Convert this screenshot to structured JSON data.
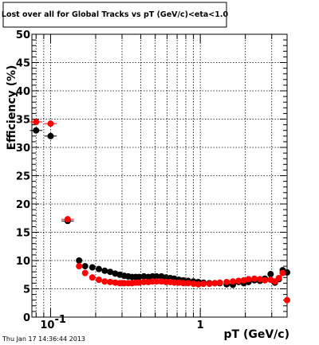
{
  "chart_data": {
    "type": "scatter",
    "title": "Lost over all for Global Tracks vs pT (GeV/c)<eta<1.0",
    "xlabel": "pT (GeV/c)",
    "ylabel": "Efficiency (%)",
    "x_scale": "log",
    "xlim": [
      0.075,
      3.8
    ],
    "ylim": [
      0,
      50
    ],
    "grid": true,
    "y_ticks": [
      0,
      5,
      10,
      15,
      20,
      25,
      30,
      35,
      40,
      45,
      50
    ],
    "y_tick_labels": [
      "0",
      "5",
      "10",
      "15",
      "20",
      "25",
      "30",
      "35",
      "40",
      "45",
      "50"
    ],
    "x_tick_labels": [
      {
        "value": 0.1,
        "base": "10",
        "exp": "-1"
      },
      {
        "value": 1,
        "base": "1",
        "exp": ""
      }
    ],
    "series": [
      {
        "color": "#000000",
        "points": [
          {
            "x": 0.08,
            "y": 33.0
          },
          {
            "x": 0.1,
            "y": 32.0
          },
          {
            "x": 0.13,
            "y": 17.0
          },
          {
            "x": 0.155,
            "y": 10.0
          },
          {
            "x": 0.17,
            "y": 9.0
          },
          {
            "x": 0.19,
            "y": 8.8
          },
          {
            "x": 0.21,
            "y": 8.5
          },
          {
            "x": 0.23,
            "y": 8.2
          },
          {
            "x": 0.25,
            "y": 8.0
          },
          {
            "x": 0.27,
            "y": 7.7
          },
          {
            "x": 0.29,
            "y": 7.5
          },
          {
            "x": 0.31,
            "y": 7.3
          },
          {
            "x": 0.33,
            "y": 7.2
          },
          {
            "x": 0.35,
            "y": 7.1
          },
          {
            "x": 0.37,
            "y": 7.1
          },
          {
            "x": 0.39,
            "y": 7.1
          },
          {
            "x": 0.42,
            "y": 7.2
          },
          {
            "x": 0.45,
            "y": 7.1
          },
          {
            "x": 0.48,
            "y": 7.2
          },
          {
            "x": 0.51,
            "y": 7.2
          },
          {
            "x": 0.55,
            "y": 7.2
          },
          {
            "x": 0.59,
            "y": 7.0
          },
          {
            "x": 0.63,
            "y": 6.9
          },
          {
            "x": 0.67,
            "y": 6.8
          },
          {
            "x": 0.72,
            "y": 6.6
          },
          {
            "x": 0.77,
            "y": 6.5
          },
          {
            "x": 0.83,
            "y": 6.4
          },
          {
            "x": 0.9,
            "y": 6.3
          },
          {
            "x": 0.97,
            "y": 6.2
          },
          {
            "x": 1.05,
            "y": 6.1
          },
          {
            "x": 1.15,
            "y": 6.0
          },
          {
            "x": 1.25,
            "y": 6.0
          },
          {
            "x": 1.35,
            "y": 6.0
          },
          {
            "x": 1.5,
            "y": 5.8
          },
          {
            "x": 1.65,
            "y": 5.7
          },
          {
            "x": 1.8,
            "y": 6.2
          },
          {
            "x": 1.95,
            "y": 6.0
          },
          {
            "x": 2.1,
            "y": 6.2
          },
          {
            "x": 2.3,
            "y": 6.5
          },
          {
            "x": 2.5,
            "y": 6.4
          },
          {
            "x": 2.7,
            "y": 6.8
          },
          {
            "x": 2.95,
            "y": 7.6
          },
          {
            "x": 3.15,
            "y": 6.1
          },
          {
            "x": 3.35,
            "y": 6.7
          },
          {
            "x": 3.55,
            "y": 8.3
          },
          {
            "x": 3.8,
            "y": 7.9
          }
        ]
      },
      {
        "color": "#ff0000",
        "points": [
          {
            "x": 0.08,
            "y": 34.5
          },
          {
            "x": 0.1,
            "y": 34.2
          },
          {
            "x": 0.13,
            "y": 17.3
          },
          {
            "x": 0.155,
            "y": 9.0
          },
          {
            "x": 0.17,
            "y": 7.8
          },
          {
            "x": 0.19,
            "y": 7.0
          },
          {
            "x": 0.21,
            "y": 6.6
          },
          {
            "x": 0.23,
            "y": 6.3
          },
          {
            "x": 0.25,
            "y": 6.2
          },
          {
            "x": 0.27,
            "y": 6.1
          },
          {
            "x": 0.29,
            "y": 6.0
          },
          {
            "x": 0.31,
            "y": 6.0
          },
          {
            "x": 0.33,
            "y": 6.0
          },
          {
            "x": 0.35,
            "y": 6.0
          },
          {
            "x": 0.37,
            "y": 6.1
          },
          {
            "x": 0.39,
            "y": 6.1
          },
          {
            "x": 0.42,
            "y": 6.2
          },
          {
            "x": 0.45,
            "y": 6.2
          },
          {
            "x": 0.48,
            "y": 6.3
          },
          {
            "x": 0.51,
            "y": 6.3
          },
          {
            "x": 0.55,
            "y": 6.3
          },
          {
            "x": 0.59,
            "y": 6.2
          },
          {
            "x": 0.63,
            "y": 6.2
          },
          {
            "x": 0.67,
            "y": 6.1
          },
          {
            "x": 0.72,
            "y": 6.1
          },
          {
            "x": 0.77,
            "y": 6.0
          },
          {
            "x": 0.83,
            "y": 6.0
          },
          {
            "x": 0.9,
            "y": 5.9
          },
          {
            "x": 0.97,
            "y": 5.8
          },
          {
            "x": 1.05,
            "y": 5.9
          },
          {
            "x": 1.15,
            "y": 5.9
          },
          {
            "x": 1.25,
            "y": 6.0
          },
          {
            "x": 1.35,
            "y": 6.1
          },
          {
            "x": 1.5,
            "y": 6.2
          },
          {
            "x": 1.65,
            "y": 6.3
          },
          {
            "x": 1.8,
            "y": 6.4
          },
          {
            "x": 1.95,
            "y": 6.5
          },
          {
            "x": 2.1,
            "y": 6.7
          },
          {
            "x": 2.3,
            "y": 6.8
          },
          {
            "x": 2.5,
            "y": 6.7
          },
          {
            "x": 2.7,
            "y": 6.5
          },
          {
            "x": 2.95,
            "y": 6.6
          },
          {
            "x": 3.15,
            "y": 6.3
          },
          {
            "x": 3.35,
            "y": 6.9
          },
          {
            "x": 3.55,
            "y": 7.8
          },
          {
            "x": 3.8,
            "y": 3.0
          }
        ]
      }
    ]
  },
  "footer": {
    "timestamp": "Thu Jan 17 14:36:44 2013"
  }
}
